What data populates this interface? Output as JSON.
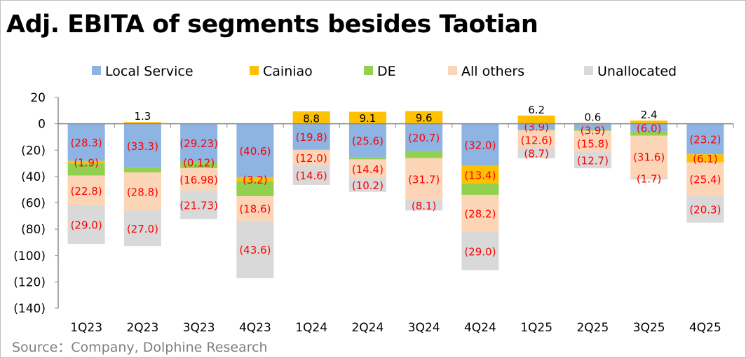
{
  "chart_data": {
    "type": "bar",
    "stacked": true,
    "title": "Adj. EBITA of segments besides Taotian",
    "source": "Source：Company, Dolphine Research",
    "categories": [
      "1Q23",
      "2Q23",
      "3Q23",
      "4Q23",
      "1Q24",
      "2Q24",
      "3Q24",
      "4Q24",
      "1Q25",
      "2Q25",
      "3Q25",
      "4Q25"
    ],
    "ylim": [
      -140,
      20
    ],
    "yticks": [
      20,
      0,
      -20,
      -40,
      -60,
      -80,
      -100,
      -120,
      -140
    ],
    "ytick_labels": [
      "20",
      "0",
      "(20)",
      "(40)",
      "(60)",
      "(80)",
      "(100)",
      "(120)",
      "(140)"
    ],
    "legend_position": "top",
    "grid": false,
    "series": [
      {
        "name": "Local Service",
        "color": "#8EB4E3",
        "labeled": true,
        "values": [
          -28.3,
          -33.3,
          -29.23,
          -40.6,
          -19.8,
          -25.6,
          -20.7,
          -32.0,
          -3.9,
          -3.9,
          -6.0,
          -23.2
        ],
        "labels": [
          "(28.3)",
          "(33.3)",
          "(29.23)",
          "(40.6)",
          "(19.8)",
          "(25.6)",
          "(20.7)",
          "(32.0)",
          "(3.9)",
          "(3.9)",
          "(6.0)",
          "(23.2)"
        ]
      },
      {
        "name": "Cainiao",
        "color": "#FFC000",
        "labeled": true,
        "values": [
          -1.9,
          1.3,
          -0.12,
          -3.2,
          8.8,
          9.1,
          9.6,
          -13.4,
          6.2,
          0.6,
          2.4,
          -6.1
        ],
        "labels": [
          "(1.9)",
          "1.3",
          "(0.12)",
          "(3.2)",
          "8.8",
          "9.1",
          "9.6",
          "(13.4)",
          "6.2",
          "0.6",
          "2.4",
          "(6.1)"
        ]
      },
      {
        "name": "DE",
        "color": "#92D050",
        "labeled": false,
        "values": [
          -9.1,
          -3.7,
          -4.3,
          -11.2,
          0.5,
          -1.4,
          -5.3,
          -8.5,
          -1.0,
          -1.4,
          -3.0,
          0.3
        ]
      },
      {
        "name": "All others",
        "color": "#FBD5B5",
        "labeled": true,
        "values": [
          -22.8,
          -28.8,
          -16.98,
          -18.6,
          -12.0,
          -14.4,
          -31.7,
          -28.2,
          -12.6,
          -15.8,
          -31.6,
          -25.4
        ],
        "labels": [
          "(22.8)",
          "(28.8)",
          "(16.98)",
          "(18.6)",
          "(12.0)",
          "(14.4)",
          "(31.7)",
          "(28.2)",
          "(12.6)",
          "(15.8)",
          "(31.6)",
          "(25.4)"
        ]
      },
      {
        "name": "Unallocated",
        "color": "#D9D9D9",
        "labeled": true,
        "values": [
          -29.0,
          -27.0,
          -21.73,
          -43.6,
          -14.6,
          -10.2,
          -8.1,
          -29.0,
          -8.7,
          -12.7,
          -1.7,
          -20.3
        ],
        "labels": [
          "(29.0)",
          "(27.0)",
          "(21.73)",
          "(43.6)",
          "(14.6)",
          "(10.2)",
          "(8.1)",
          "(29.0)",
          "(8.7)",
          "(12.7)",
          "(1.7)",
          "(20.3)"
        ]
      }
    ],
    "label_colors": {
      "negative": "#FF0000",
      "positive": "#000000"
    }
  }
}
